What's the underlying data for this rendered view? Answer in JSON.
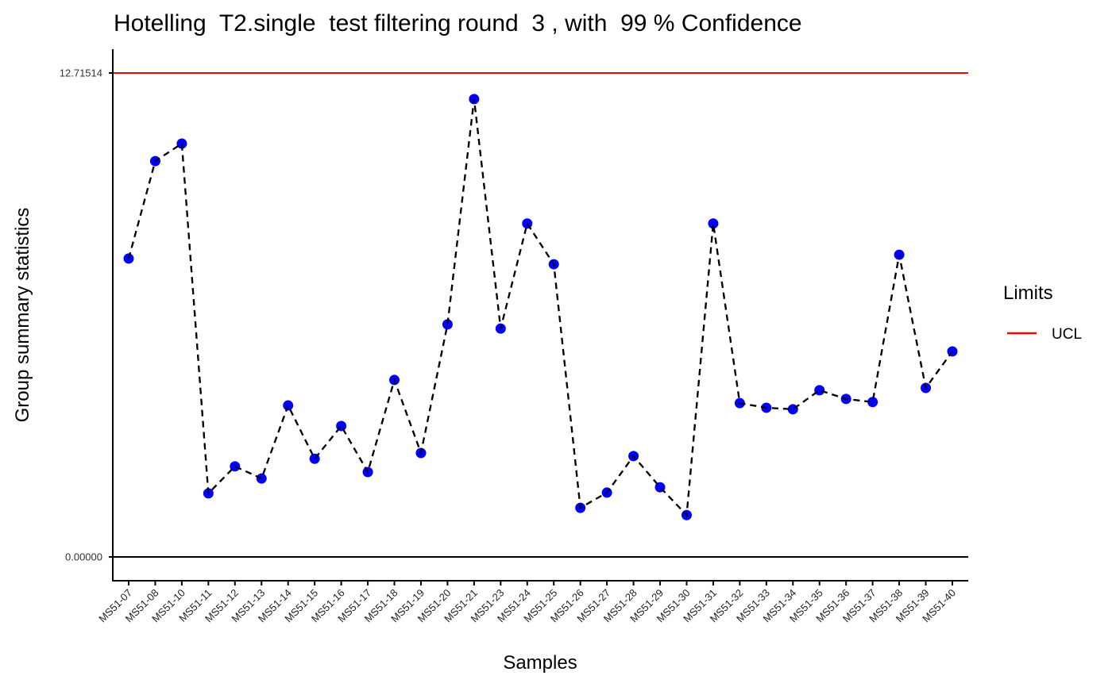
{
  "chart_data": {
    "type": "line",
    "title": "Hotelling  T2.single  test filtering round  3 , with  99 % Confidence",
    "xlabel": "Samples",
    "ylabel": "Group summary statistics",
    "ylim": [
      0,
      12.71514
    ],
    "y_tick_labels": [
      "0.00000",
      "12.71514"
    ],
    "y_ticks": [
      0,
      12.71514
    ],
    "grid": false,
    "categories": [
      "MS51-07",
      "MS51-08",
      "MS51-10",
      "MS51-11",
      "MS51-12",
      "MS51-13",
      "MS51-14",
      "MS51-15",
      "MS51-16",
      "MS51-17",
      "MS51-18",
      "MS51-19",
      "MS51-20",
      "MS51-21",
      "MS51-23",
      "MS51-24",
      "MS51-25",
      "MS51-26",
      "MS51-27",
      "MS51-28",
      "MS51-29",
      "MS51-30",
      "MS51-31",
      "MS51-32",
      "MS51-33",
      "MS51-34",
      "MS51-35",
      "MS51-36",
      "MS51-37",
      "MS51-38",
      "MS51-39",
      "MS51-40"
    ],
    "series": [
      {
        "name": "Group summary statistics",
        "style": "dashed line with points",
        "line_color": "#000000",
        "point_color": "#0000ff",
        "values": [
          7.84,
          10.4,
          10.86,
          1.67,
          2.38,
          2.06,
          3.98,
          2.58,
          3.44,
          2.23,
          4.65,
          2.73,
          6.11,
          12.03,
          6.0,
          8.76,
          7.69,
          1.29,
          1.69,
          2.65,
          1.83,
          1.1,
          8.76,
          4.04,
          3.92,
          3.88,
          4.38,
          4.15,
          4.07,
          7.94,
          4.44,
          5.4
        ]
      }
    ],
    "reference_lines": [
      {
        "name": "UCL",
        "value": 12.71514,
        "color": "#ff0000"
      },
      {
        "name": "baseline",
        "value": 0,
        "color": "#000000"
      }
    ],
    "legend": {
      "title": "Limits",
      "placement": "right",
      "entries": [
        {
          "label": "UCL",
          "color": "#ff0000"
        }
      ]
    }
  }
}
